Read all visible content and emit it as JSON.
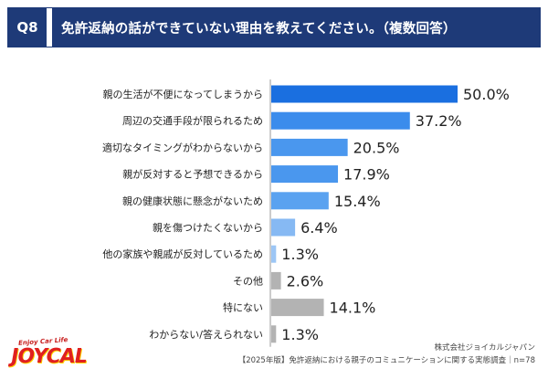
{
  "header": {
    "qnum": "Q8",
    "title": "免許返納の話ができていない理由を教えてください。（複数回答）"
  },
  "chart_data": {
    "type": "bar",
    "orientation": "horizontal",
    "categories": [
      "親の生活が不便になってしまうから",
      "周辺の交通手段が限られるため",
      "適切なタイミングがわからないから",
      "親が反対すると予想できるから",
      "親の健康状態に懸念がないため",
      "親を傷つけたくないから",
      "他の家族や親戚が反対しているため",
      "その他",
      "特にない",
      "わからない/答えられない"
    ],
    "values": [
      50.0,
      37.2,
      20.5,
      17.9,
      15.4,
      6.4,
      1.3,
      2.6,
      14.1,
      1.3
    ],
    "value_labels": [
      "50.0%",
      "37.2%",
      "20.5%",
      "17.9%",
      "15.4%",
      "6.4%",
      "1.3%",
      "2.6%",
      "14.1%",
      "1.3%"
    ],
    "bar_colors": [
      "#1a6fe0",
      "#3b8cec",
      "#4a97ee",
      "#4a97ee",
      "#5aa2f0",
      "#86b9f3",
      "#9cc6f5",
      "#b3b3b3",
      "#b3b3b3",
      "#b3b3b3"
    ],
    "xlim": [
      0,
      50
    ],
    "grid": false,
    "legend": "none"
  },
  "footer": {
    "company": "株式会社ジョイカルジャパン",
    "note": "【2025年版】免許返納における親子のコミュニケーションに関する実態調査｜n=78"
  },
  "logo": {
    "tagline": "Enjoy Car Life",
    "name": "JOYCAL"
  }
}
